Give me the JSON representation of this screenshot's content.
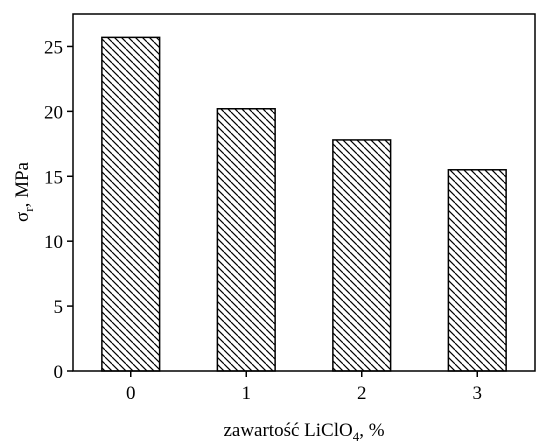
{
  "chart_data": {
    "type": "bar",
    "categories": [
      "0",
      "1",
      "2",
      "3"
    ],
    "values": [
      25.7,
      20.2,
      17.8,
      15.5
    ],
    "xlabel": {
      "main": "zawartość LiClO",
      "sub": "4",
      "suffix": ", %"
    },
    "ylabel": {
      "main": "σ",
      "sub": "r",
      "suffix": ", MPa"
    },
    "ylim": [
      0,
      27.5
    ],
    "yticks": [
      "0",
      "5",
      "10",
      "15",
      "20",
      "25"
    ],
    "grid": false,
    "bar_fill": "diagonal-hatch",
    "colors": {
      "axis": "#000000",
      "hatch": "#000000",
      "background": "#ffffff"
    }
  }
}
